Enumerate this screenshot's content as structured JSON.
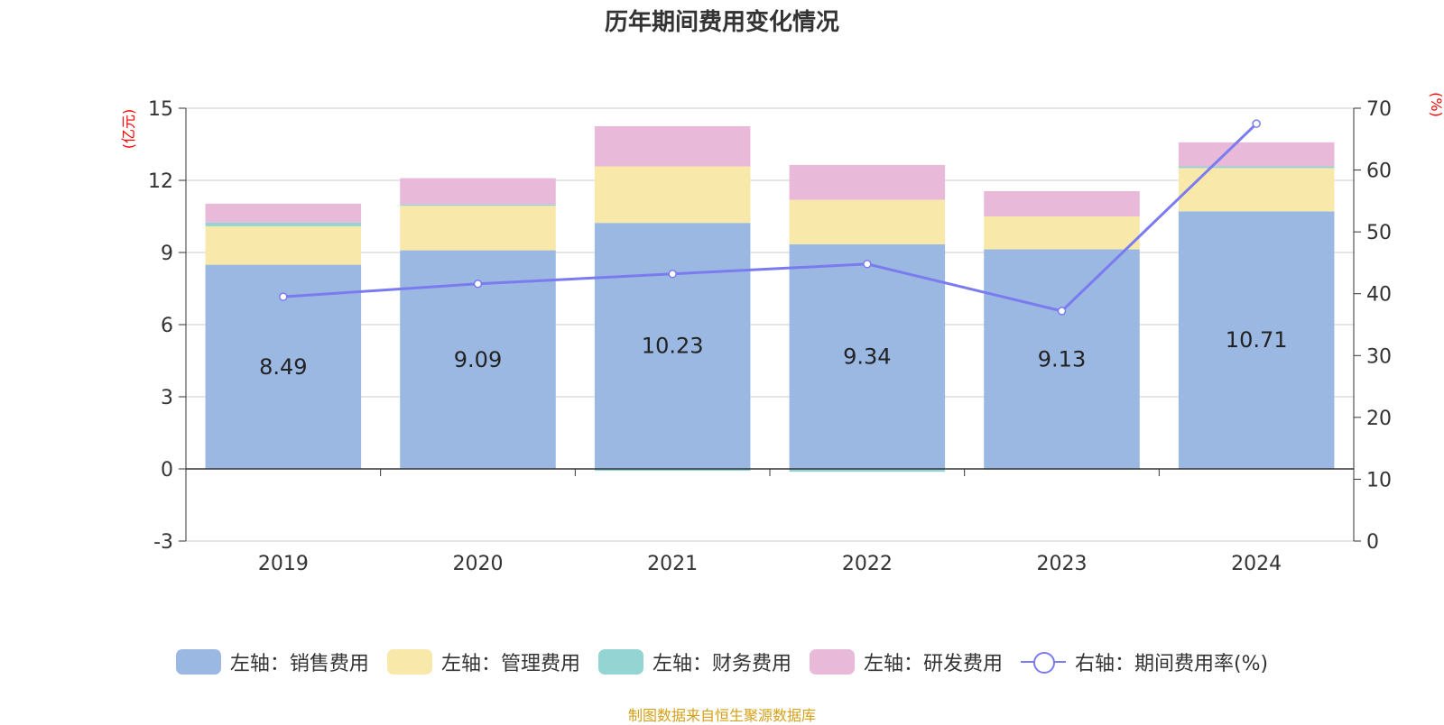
{
  "title": "历年期间费用变化情况",
  "source": "制图数据来自恒生聚源数据库",
  "chart_data": {
    "type": "bar",
    "stacked": true,
    "categories": [
      "2019",
      "2020",
      "2021",
      "2022",
      "2023",
      "2024"
    ],
    "left_axis": {
      "unit_label": "(亿元)",
      "ylim": [
        -3,
        15
      ],
      "ticks": [
        "-3",
        "0",
        "3",
        "6",
        "9",
        "12",
        "15"
      ]
    },
    "right_axis": {
      "unit_label": "(%)",
      "ylim": [
        0,
        70
      ],
      "ticks": [
        "0",
        "10",
        "20",
        "30",
        "40",
        "50",
        "60",
        "70"
      ]
    },
    "grid": true,
    "legend_position": "bottom",
    "series": [
      {
        "name": "左轴：销售费用",
        "axis": "left",
        "color": "#9bb8e2",
        "values": [
          8.49,
          9.09,
          10.23,
          9.34,
          9.13,
          10.71
        ],
        "labels": [
          "8.49",
          "9.09",
          "10.23",
          "9.34",
          "9.13",
          "10.71"
        ]
      },
      {
        "name": "左轴：管理费用",
        "axis": "left",
        "color": "#f8e8a9",
        "values": [
          1.6,
          1.85,
          2.35,
          1.85,
          1.37,
          1.8
        ]
      },
      {
        "name": "左轴：财务费用",
        "axis": "left",
        "color": "#94d5d4",
        "values": [
          0.15,
          0.05,
          -0.08,
          -0.12,
          -0.03,
          0.07
        ]
      },
      {
        "name": "左轴：研发费用",
        "axis": "left",
        "color": "#e8b9d9",
        "values": [
          0.79,
          1.1,
          1.67,
          1.45,
          1.05,
          1.0
        ]
      },
      {
        "name": "右轴：期间费用率(%)",
        "axis": "right",
        "type": "line",
        "color": "#7b7bf0",
        "values": [
          39.5,
          41.6,
          43.2,
          44.8,
          37.2,
          67.5
        ]
      }
    ]
  }
}
